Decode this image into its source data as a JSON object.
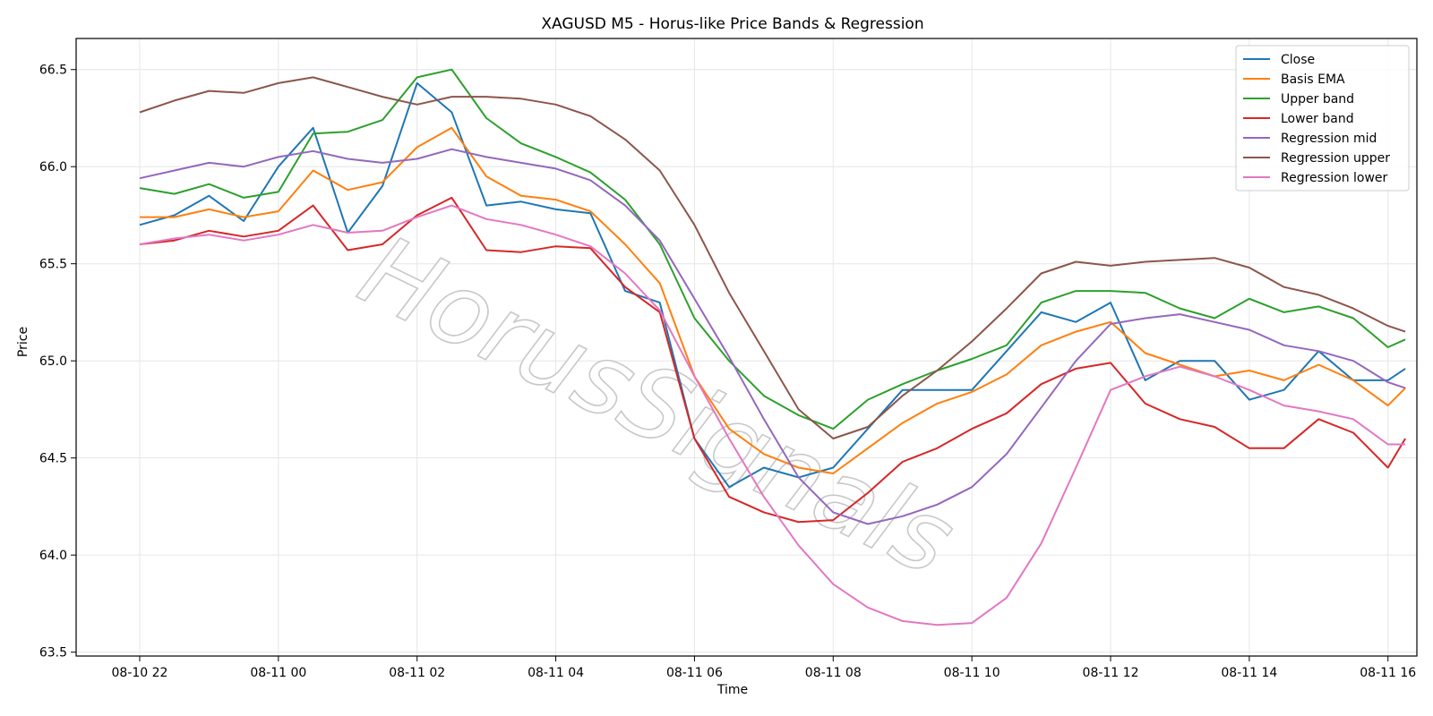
{
  "chart_data": {
    "type": "line",
    "title": "XAGUSD M5 - Horus-like Price Bands & Regression",
    "xlabel": "Time",
    "ylabel": "Price",
    "ylim": [
      63.48,
      66.66
    ],
    "x_range": [
      "2025-08-10 21:05",
      "2025-08-11 16:25"
    ],
    "x_ticks": [
      "08-10 22",
      "08-11 00",
      "08-11 02",
      "08-11 04",
      "08-11 06",
      "08-11 08",
      "08-11 10",
      "08-11 12",
      "08-11 14",
      "08-11 16"
    ],
    "y_ticks": [
      63.5,
      64.0,
      64.5,
      65.0,
      65.5,
      66.0,
      66.5
    ],
    "grid": true,
    "legend_position": "top-right",
    "watermark": "HorusSignals",
    "x": [
      "08-10 22:00",
      "08-10 22:30",
      "08-10 23:00",
      "08-10 23:30",
      "08-11 00:00",
      "08-11 00:30",
      "08-11 01:00",
      "08-11 01:30",
      "08-11 02:00",
      "08-11 02:30",
      "08-11 03:00",
      "08-11 03:30",
      "08-11 04:00",
      "08-11 04:30",
      "08-11 05:00",
      "08-11 05:30",
      "08-11 06:00",
      "08-11 06:30",
      "08-11 07:00",
      "08-11 07:30",
      "08-11 08:00",
      "08-11 08:30",
      "08-11 09:00",
      "08-11 09:30",
      "08-11 10:00",
      "08-11 10:30",
      "08-11 11:00",
      "08-11 11:30",
      "08-11 12:00",
      "08-11 12:30",
      "08-11 13:00",
      "08-11 13:30",
      "08-11 14:00",
      "08-11 14:30",
      "08-11 15:00",
      "08-11 15:30",
      "08-11 16:00",
      "08-11 16:15"
    ],
    "series": [
      {
        "name": "Close",
        "color": "#1f77b4",
        "values": [
          65.7,
          65.75,
          65.85,
          65.72,
          66.0,
          66.2,
          65.66,
          65.9,
          66.43,
          66.28,
          65.8,
          65.82,
          65.78,
          65.76,
          65.36,
          65.3,
          64.6,
          64.35,
          64.45,
          64.4,
          64.45,
          64.65,
          64.85,
          64.85,
          64.85,
          65.05,
          65.25,
          65.2,
          65.3,
          64.9,
          65.0,
          65.0,
          64.8,
          64.85,
          65.05,
          64.9,
          64.9,
          64.96
        ]
      },
      {
        "name": "Basis EMA",
        "color": "#ff7f0e",
        "values": [
          65.74,
          65.74,
          65.78,
          65.74,
          65.77,
          65.98,
          65.88,
          65.92,
          66.1,
          66.2,
          65.95,
          65.85,
          65.83,
          65.77,
          65.6,
          65.4,
          64.92,
          64.65,
          64.52,
          64.45,
          64.42,
          64.55,
          64.68,
          64.78,
          64.84,
          64.93,
          65.08,
          65.15,
          65.2,
          65.04,
          64.98,
          64.92,
          64.95,
          64.9,
          64.98,
          64.9,
          64.77,
          64.86
        ]
      },
      {
        "name": "Upper band",
        "color": "#2ca02c",
        "values": [
          65.89,
          65.86,
          65.91,
          65.84,
          65.87,
          66.17,
          66.18,
          66.24,
          66.46,
          66.5,
          66.25,
          66.12,
          66.05,
          65.97,
          65.83,
          65.6,
          65.22,
          65.0,
          64.82,
          64.72,
          64.65,
          64.8,
          64.88,
          64.95,
          65.01,
          65.08,
          65.3,
          65.36,
          65.36,
          65.35,
          65.27,
          65.22,
          65.32,
          65.25,
          65.28,
          65.22,
          65.07,
          65.11
        ]
      },
      {
        "name": "Lower band",
        "color": "#d62728",
        "values": [
          65.6,
          65.62,
          65.67,
          65.64,
          65.67,
          65.8,
          65.57,
          65.6,
          65.75,
          65.84,
          65.57,
          65.56,
          65.59,
          65.58,
          65.38,
          65.25,
          64.6,
          64.3,
          64.22,
          64.17,
          64.18,
          64.32,
          64.48,
          64.55,
          64.65,
          64.73,
          64.88,
          64.96,
          64.99,
          64.78,
          64.7,
          64.66,
          64.55,
          64.55,
          64.7,
          64.63,
          64.45,
          64.6
        ]
      },
      {
        "name": "Regression mid",
        "color": "#9467bd",
        "values": [
          65.94,
          65.98,
          66.02,
          66.0,
          66.05,
          66.08,
          66.04,
          66.02,
          66.04,
          66.09,
          66.05,
          66.02,
          65.99,
          65.93,
          65.8,
          65.62,
          65.32,
          65.02,
          64.7,
          64.4,
          64.22,
          64.16,
          64.2,
          64.26,
          64.35,
          64.52,
          64.76,
          65.0,
          65.19,
          65.22,
          65.24,
          65.2,
          65.16,
          65.08,
          65.05,
          65.0,
          64.89,
          64.86
        ]
      },
      {
        "name": "Regression upper",
        "color": "#8c564b",
        "values": [
          66.28,
          66.34,
          66.39,
          66.38,
          66.43,
          66.46,
          66.41,
          66.36,
          66.32,
          66.36,
          66.36,
          66.35,
          66.32,
          66.26,
          66.14,
          65.98,
          65.7,
          65.35,
          65.05,
          64.75,
          64.6,
          64.66,
          64.82,
          64.95,
          65.1,
          65.27,
          65.45,
          65.51,
          65.49,
          65.51,
          65.52,
          65.53,
          65.48,
          65.38,
          65.34,
          65.27,
          65.18,
          65.15
        ]
      },
      {
        "name": "Regression lower",
        "color": "#e377c2",
        "values": [
          65.6,
          65.63,
          65.65,
          65.62,
          65.65,
          65.7,
          65.66,
          65.67,
          65.74,
          65.8,
          65.73,
          65.7,
          65.65,
          65.59,
          65.45,
          65.26,
          64.92,
          64.6,
          64.3,
          64.05,
          63.85,
          63.73,
          63.66,
          63.64,
          63.65,
          63.78,
          64.06,
          64.45,
          64.85,
          64.92,
          64.97,
          64.92,
          64.85,
          64.77,
          64.74,
          64.7,
          64.57,
          64.57
        ]
      }
    ]
  }
}
